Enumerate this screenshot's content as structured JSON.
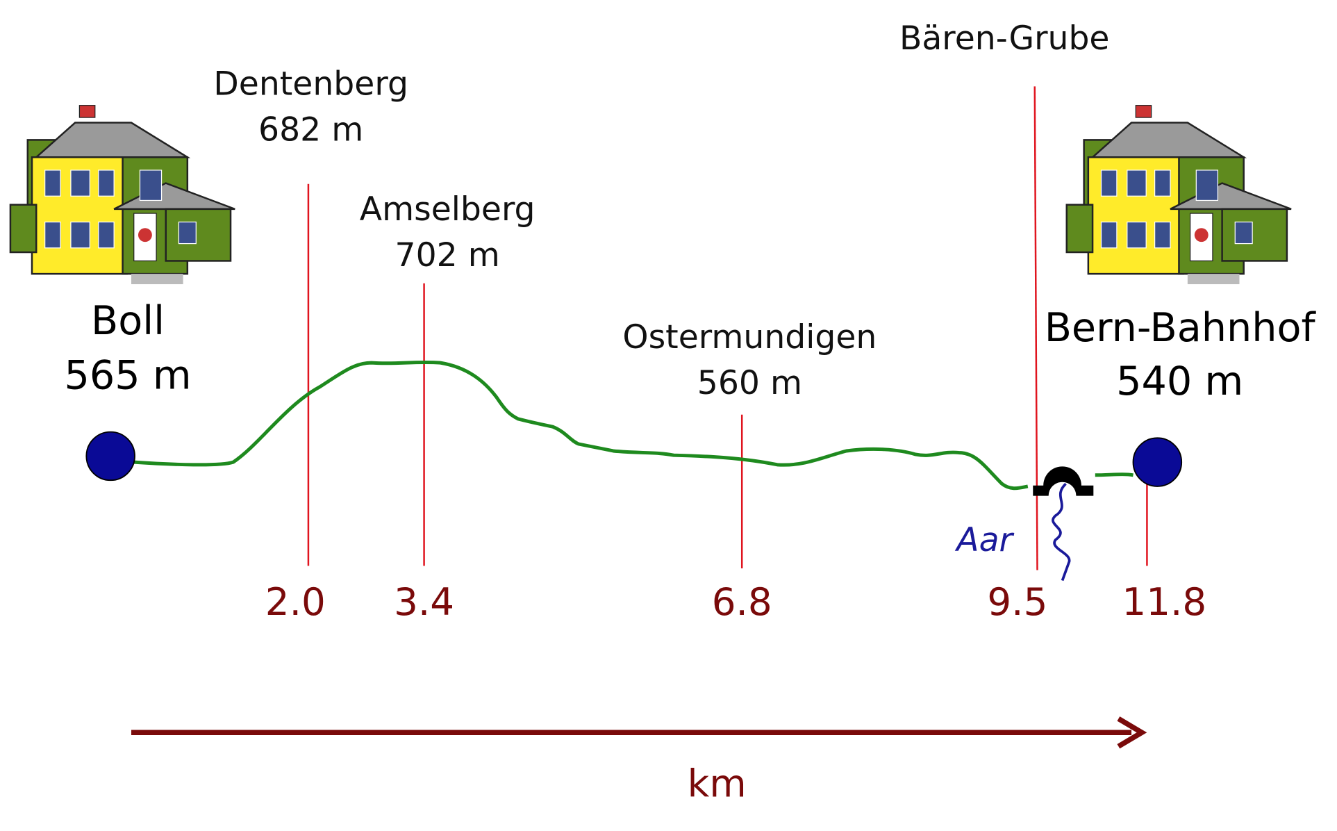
{
  "start": {
    "name": "Boll",
    "elevation": "565 m"
  },
  "end": {
    "name": "Bern-Bahnhof",
    "elevation": "540 m"
  },
  "waypoints": [
    {
      "name": "Dentenberg",
      "elevation": "682 m"
    },
    {
      "name": "Amselberg",
      "elevation": "702 m"
    },
    {
      "name": "Ostermundigen",
      "elevation": "560 m"
    },
    {
      "name": "Bären-Grube"
    }
  ],
  "distances": [
    "2.0",
    "3.4",
    "6.8",
    "9.5",
    "11.8"
  ],
  "river": "Aar",
  "axis_label": "km"
}
